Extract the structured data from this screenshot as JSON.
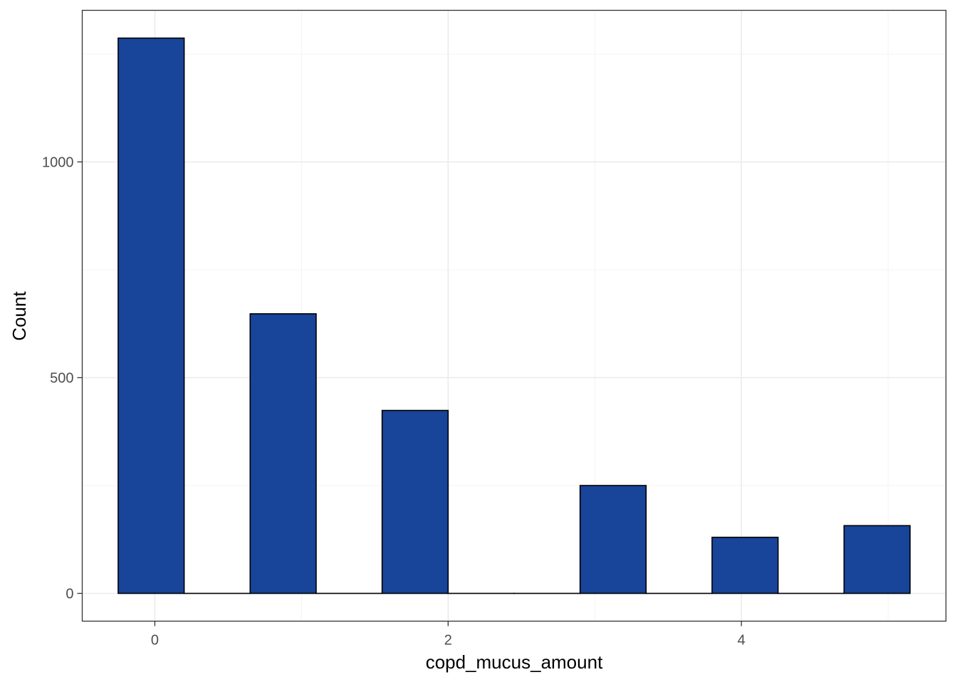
{
  "chart_data": {
    "type": "bar",
    "title": "",
    "xlabel": "copd_mucus_amount",
    "ylabel": "Count",
    "bins": [
      {
        "x0": -0.25,
        "x1": 0.2,
        "count": 1287
      },
      {
        "x0": 0.2,
        "x1": 0.65,
        "count": 0
      },
      {
        "x0": 0.65,
        "x1": 1.1,
        "count": 648
      },
      {
        "x0": 1.1,
        "x1": 1.55,
        "count": 0
      },
      {
        "x0": 1.55,
        "x1": 2.0,
        "count": 424
      },
      {
        "x0": 2.0,
        "x1": 2.45,
        "count": 0
      },
      {
        "x0": 2.45,
        "x1": 2.9,
        "count": 0
      },
      {
        "x0": 2.9,
        "x1": 3.35,
        "count": 250
      },
      {
        "x0": 3.35,
        "x1": 3.8,
        "count": 0
      },
      {
        "x0": 3.8,
        "x1": 4.25,
        "count": 130
      },
      {
        "x0": 4.25,
        "x1": 4.7,
        "count": 0
      },
      {
        "x0": 4.7,
        "x1": 5.15,
        "count": 157
      }
    ],
    "x_ticks": [
      0,
      2,
      4
    ],
    "y_ticks": [
      0,
      500,
      1000
    ],
    "xlim": [
      -0.495,
      5.395
    ],
    "ylim": [
      -64.35,
      1351.35
    ],
    "grid": true,
    "legend": "none",
    "colors": {
      "bar_fill": "#18449a",
      "bar_outline": "#000000",
      "grid_major": "#ebebeb",
      "grid_minor": "#f5f5f5",
      "panel_border": "#333333",
      "tick_text": "#4d4d4d"
    }
  }
}
